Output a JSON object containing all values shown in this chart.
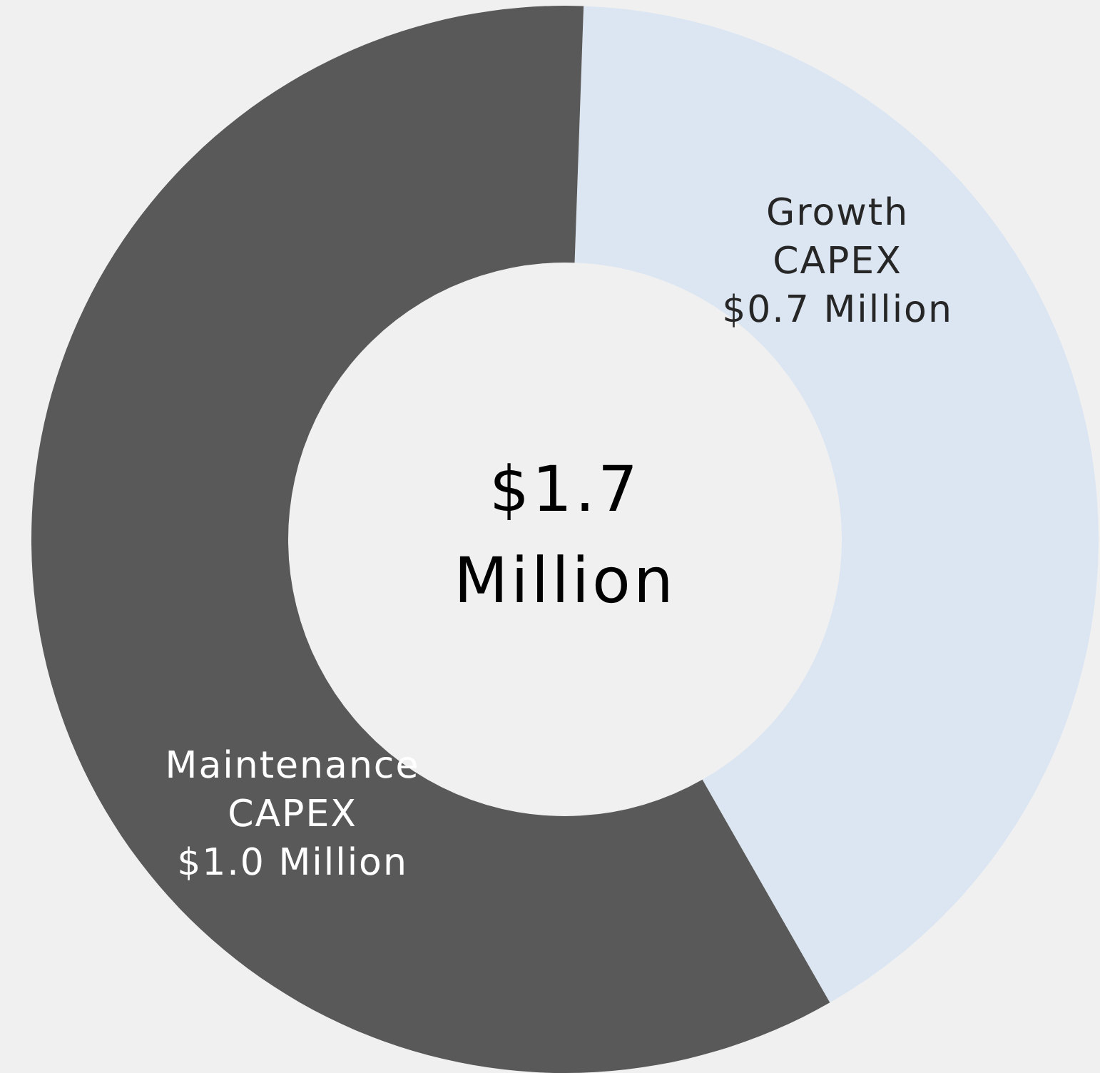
{
  "chart_data": {
    "type": "donut",
    "categories": [
      "Growth CAPEX",
      "Maintenance CAPEX"
    ],
    "values": [
      0.7,
      1.0
    ],
    "colors": [
      "#dce6f2",
      "#595959"
    ],
    "value_labels": [
      "$0.7 Million",
      "$1.0 Million"
    ],
    "annotations": [
      "$1.7 Million"
    ]
  }
}
